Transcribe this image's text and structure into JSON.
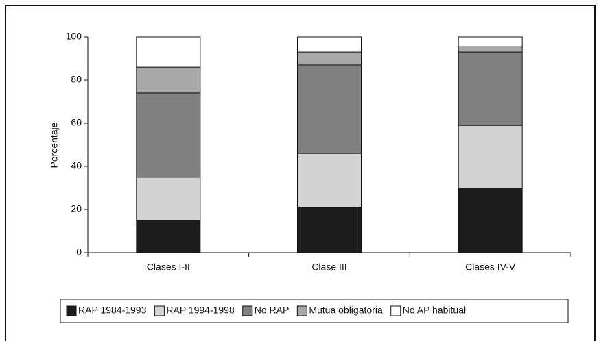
{
  "chart_data": {
    "type": "stacked_bar",
    "ylabel": "Porcentaje",
    "categories": [
      "Clases I-II",
      "Clase III",
      "Clases IV-V"
    ],
    "series": [
      {
        "name": "RAP 1984-1993",
        "color": "#1c1c1c",
        "values": [
          15,
          21,
          30
        ]
      },
      {
        "name": "RAP 1994-1998",
        "color": "#d3d3d3",
        "values": [
          20,
          25,
          29
        ]
      },
      {
        "name": "No RAP",
        "color": "#808080",
        "values": [
          39,
          41,
          34
        ]
      },
      {
        "name": "Mutua obligatoria",
        "color": "#a8a8a8",
        "values": [
          12,
          6,
          2.5
        ]
      },
      {
        "name": "No AP habitual",
        "color": "#ffffff",
        "values": [
          14,
          7,
          4.5
        ]
      }
    ],
    "ylim": [
      0,
      100
    ],
    "yticks": [
      0,
      20,
      40,
      60,
      80,
      100
    ],
    "legend": "bottom"
  }
}
